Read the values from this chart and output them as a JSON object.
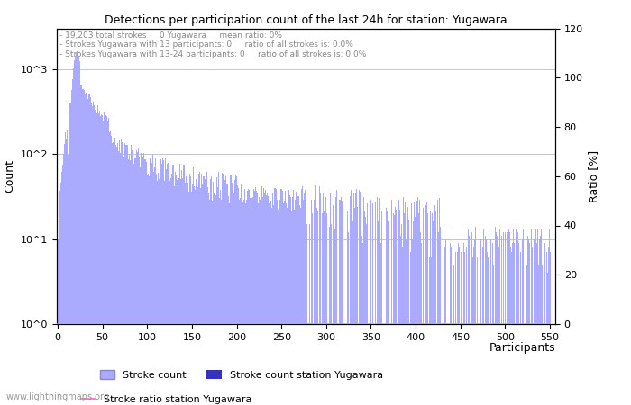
{
  "title": "Detections per participation count of the last 24h for station: Yugawara",
  "xlabel": "Participants",
  "ylabel_left": "Count",
  "ylabel_right": "Ratio [%]",
  "annotation_lines": [
    "19,203 total strokes     0 Yugawara     mean ratio: 0%",
    "Strokes Yugawara with 13 participants: 0     ratio of all strokes is: 0.0%",
    "Strokes Yugawara with 13-24 participants: 0     ratio of all strokes is: 0.0%"
  ],
  "x_max": 550,
  "ylim_left": [
    1,
    3000
  ],
  "ylim_right": [
    0,
    120
  ],
  "y_right_ticks": [
    0,
    20,
    40,
    60,
    80,
    100,
    120
  ],
  "bar_color": "#aaaaff",
  "station_bar_color": "#3333bb",
  "ratio_line_color": "#ff88cc",
  "bg_color": "#ffffff",
  "plot_bg_color": "#ffffff",
  "grid_color": "#cccccc",
  "legend_stroke_count": "Stroke count",
  "legend_station": "Stroke count station Yugawara",
  "legend_ratio": "Stroke ratio station Yugawara",
  "watermark": "www.lightningmaps.org"
}
